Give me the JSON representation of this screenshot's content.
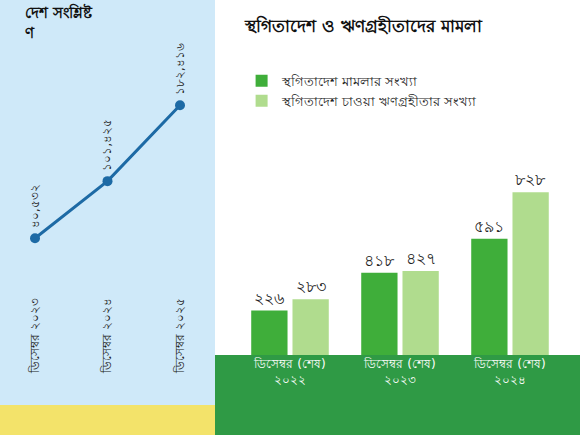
{
  "chart_data": [
    {
      "type": "line",
      "title": [
        "দেশ সংশ্লিষ্ট",
        "ণ"
      ],
      "categories": [
        "ডিসেম্বর ২০২৩",
        "ডিসেম্বর ২০২৪",
        "ডিসেম্বর ২০২৫"
      ],
      "values": [
        40532,
        101425,
        182416
      ],
      "value_labels": [
        "৪০,৫৩২",
        "১০১,৪২৫",
        "১৮২,৪১৬"
      ],
      "color": "#1d6aa5",
      "marker": "circle",
      "ylim": [
        -20000,
        220000
      ],
      "data_labels": true,
      "tick_labels": "x",
      "grid": false
    },
    {
      "type": "bar",
      "title": "স্থগিতাদেশ ও ঋণগ্রহীতাদের মামলা",
      "categories": [
        "ডিসেম্বর (শেষ) ২০২২",
        "ডিসেম্বর (শেষ) ২০২৩",
        "ডিসেম্বর (শেষ) ২০২৪"
      ],
      "series": [
        {
          "name": "স্থগিতাদেশ মামলার সংখ্যা",
          "color": "#3fae3a",
          "values": [
            226,
            418,
            591
          ],
          "value_labels": [
            "২২৬",
            "৪১৮",
            "৫৯১"
          ]
        },
        {
          "name": "স্থগিতাদেশ চাওয়া ঋণগ্রহীতার সংখ্যা",
          "color": "#b0dc8e",
          "values": [
            283,
            427,
            828
          ],
          "value_labels": [
            "২৮৩",
            "৪২৭",
            "৮২৮"
          ]
        }
      ],
      "ylim": [
        0,
        1500
      ],
      "data_labels": true,
      "legend": "top left",
      "tick_labels": "x",
      "grid": false
    }
  ]
}
